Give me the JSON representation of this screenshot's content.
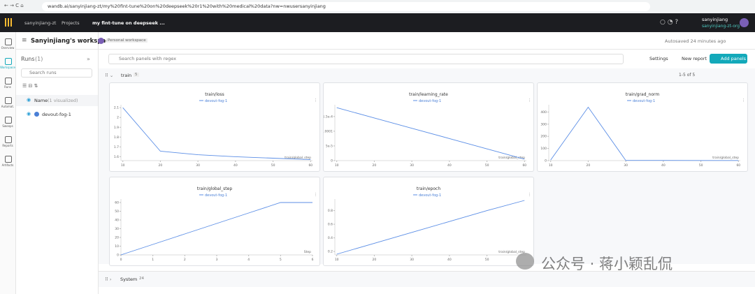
{
  "browser": {
    "url": "wandb.ai/sanyinjiang-zt/my%20fint-tune%20on%20deepseek%20r1%20with%20medical%20data?nw=nwusersanyinjiang"
  },
  "nav": {
    "org": "sanyinjiang-zt",
    "projects": "Projects",
    "project": "my fint-tune on deepseek ...",
    "user": "sanyinjiang",
    "team": "sanyinjiang-zt-org"
  },
  "sidebar": [
    "Overview",
    "Workspace",
    "Runs",
    "Automat.",
    "Sweeps",
    "Reports",
    "Artifacts"
  ],
  "workspace": {
    "title": "Sanyinjiang's workspace",
    "badge": "Personal workspace",
    "autosaved": "Autosaved 24 minutes ago"
  },
  "runs": {
    "title": "Runs",
    "count": "(1)",
    "search": "Search runs",
    "name_header": "Name",
    "visualized": "(1 visualized)",
    "items": [
      "devout-fog-1"
    ]
  },
  "toolbar": {
    "search": "Search panels with regex",
    "settings": "Settings",
    "new_report": "New report",
    "add_panels": "Add panels"
  },
  "section": {
    "name": "train",
    "count": 5,
    "paging": "1-5 of 5"
  },
  "panels": [
    {
      "title": "train/loss",
      "legend": "devout-fog-1",
      "x_label": "train/global_step",
      "color": "#5b8ee6",
      "x": [
        10,
        20,
        30,
        40,
        50,
        60
      ],
      "values": [
        2.1,
        1.656,
        1.62,
        1.6,
        1.585,
        1.57
      ],
      "xlim": [
        9.5,
        60.5
      ],
      "ylim": [
        1.56,
        2.13
      ],
      "xticks": [
        10,
        20,
        30,
        40,
        50,
        60
      ],
      "yticks": [
        1.6,
        1.7,
        1.8,
        1.9,
        2,
        2.1
      ]
    },
    {
      "title": "train/learning_rate",
      "legend": "devout-fog-1",
      "x_label": "train/global_step",
      "color": "#5b8ee6",
      "x": [
        10,
        20,
        30,
        40,
        50,
        60
      ],
      "values": [
        0.00018,
        0.000145,
        0.00011,
        7.5e-05,
        4e-05,
        5e-06
      ],
      "xlim": [
        9.5,
        60.5
      ],
      "ylim": [
        0,
        0.00019
      ],
      "xticks": [
        10,
        20,
        30,
        40,
        50,
        60
      ],
      "yticks": [
        0,
        {
          "value": 5e-05,
          "label": "5e-5"
        },
        0.0001,
        {
          "value": 0.00015,
          "label": "1.5e-4"
        }
      ]
    },
    {
      "title": "train/grad_norm",
      "legend": "devout-fog-1",
      "x_label": "train/global_step",
      "color": "#5b8ee6",
      "x": [
        10,
        20,
        30,
        40,
        50,
        60
      ],
      "values": [
        5,
        440,
        2,
        1.5,
        1.2,
        1
      ],
      "xlim": [
        9.5,
        60.5
      ],
      "ylim": [
        0,
        460
      ],
      "xticks": [
        10,
        20,
        30,
        40,
        50,
        60
      ],
      "yticks": [
        0,
        100,
        200,
        300,
        400
      ]
    },
    {
      "title": "train/global_step",
      "legend": "devout-fog-1",
      "x_label": "Step",
      "color": "#5b8ee6",
      "x": [
        0,
        1,
        2,
        3,
        4,
        5,
        6
      ],
      "values": [
        0,
        12,
        24,
        36,
        48,
        60,
        60
      ],
      "xlim": [
        0,
        6
      ],
      "ylim": [
        0,
        64
      ],
      "xticks": [
        0,
        1,
        2,
        3,
        4,
        5,
        6
      ],
      "yticks": [
        0,
        10,
        20,
        30,
        40,
        50,
        60
      ]
    },
    {
      "title": "train/epoch",
      "legend": "devout-fog-1",
      "x_label": "train/global_step",
      "color": "#5b8ee6",
      "x": [
        10,
        20,
        30,
        40,
        50,
        60
      ],
      "values": [
        0.16,
        0.32,
        0.48,
        0.64,
        0.8,
        0.95
      ],
      "xlim": [
        9.5,
        60.5
      ],
      "ylim": [
        0.15,
        0.97
      ],
      "xticks": [
        10,
        20,
        30,
        40,
        50
      ],
      "yticks": [
        0.2,
        0.4,
        0.6,
        0.8
      ]
    }
  ],
  "system": {
    "name": "System",
    "count": 24
  },
  "watermark": "公众号 · 蒋小颖乱侃"
}
